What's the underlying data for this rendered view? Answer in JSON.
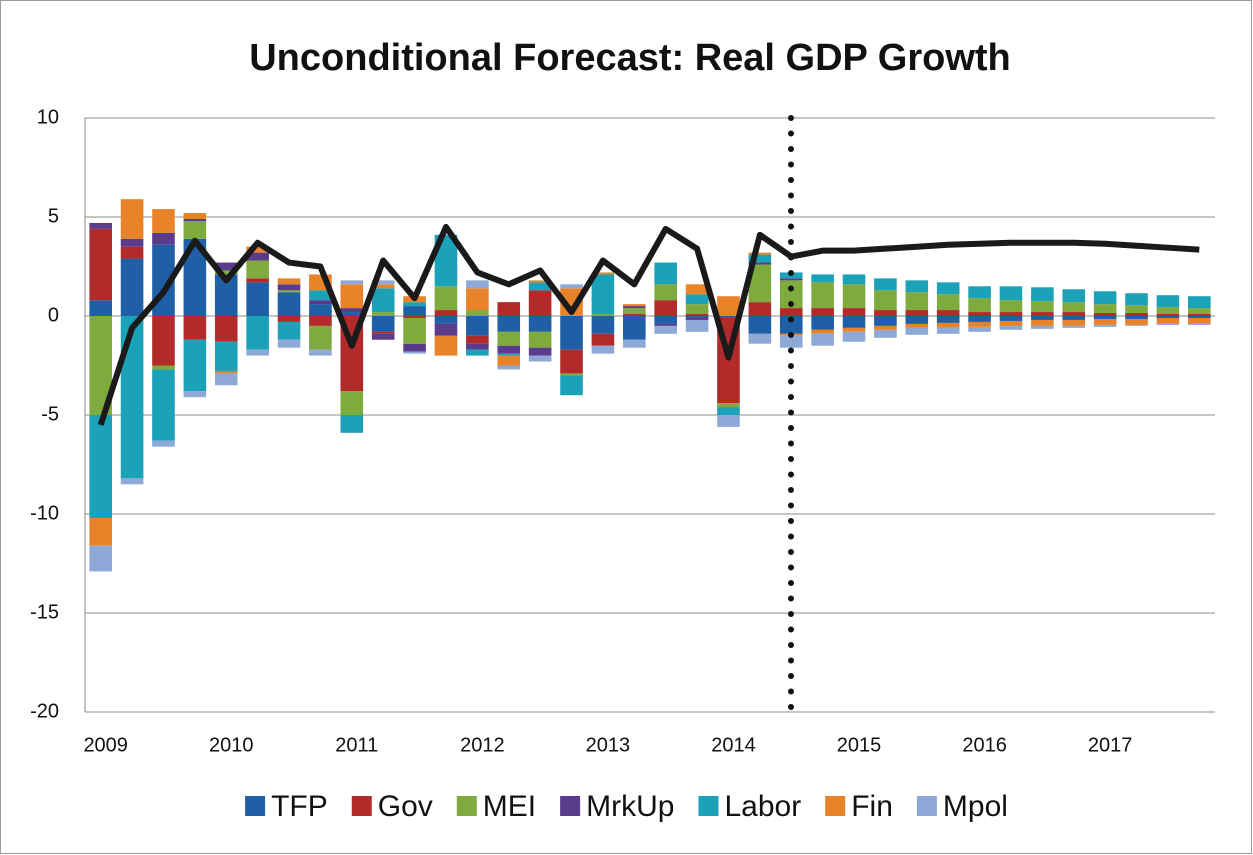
{
  "chart_data": {
    "type": "bar",
    "title": "Unconditional Forecast: Real GDP Growth",
    "categories": [
      "2009",
      null,
      null,
      null,
      "2010",
      null,
      null,
      null,
      "2011",
      null,
      null,
      null,
      "2012",
      null,
      null,
      null,
      "2013",
      null,
      null,
      null,
      "2014",
      null,
      null,
      null,
      "2015",
      null,
      null,
      null,
      "2016",
      null,
      null,
      null,
      "2017",
      null,
      null,
      null
    ],
    "series": [
      {
        "name": "TFP",
        "color": "#1f5fa6",
        "values": [
          0.8,
          2.9,
          3.6,
          3.9,
          2.1,
          1.7,
          1.2,
          0.6,
          0.2,
          -0.8,
          0.5,
          -0.4,
          -1.0,
          -0.8,
          -0.8,
          -1.7,
          -0.9,
          -1.2,
          -0.4,
          -0.1,
          -0.1,
          -0.9,
          -0.9,
          -0.7,
          -0.6,
          -0.5,
          -0.4,
          -0.35,
          -0.3,
          -0.25,
          -0.2,
          -0.2,
          -0.15,
          -0.15,
          -0.1,
          -0.1
        ]
      },
      {
        "name": "Gov",
        "color": "#b22a2a",
        "values": [
          3.6,
          0.6,
          -2.5,
          -1.2,
          -1.3,
          0.2,
          -0.3,
          -0.5,
          -3.8,
          -0.1,
          -0.1,
          0.3,
          -0.4,
          0.7,
          1.3,
          -1.2,
          -0.6,
          0.1,
          0.8,
          0.1,
          -4.3,
          0.7,
          0.4,
          0.4,
          0.4,
          0.3,
          0.3,
          0.3,
          0.2,
          0.2,
          0.2,
          0.2,
          0.15,
          0.15,
          0.1,
          0.1
        ]
      },
      {
        "name": "MEI",
        "color": "#7fab3e",
        "values": [
          -5.0,
          0,
          -0.2,
          0.9,
          0.2,
          0.9,
          0.1,
          -1.2,
          -1.2,
          0.2,
          -1.3,
          1.2,
          0.3,
          -0.7,
          -0.8,
          -0.1,
          0.1,
          0.3,
          0.8,
          0.5,
          -0.2,
          1.9,
          1.4,
          1.3,
          1.2,
          1.0,
          0.9,
          0.8,
          0.7,
          0.6,
          0.55,
          0.5,
          0.45,
          0.4,
          0.35,
          0.3
        ]
      },
      {
        "name": "MrkUp",
        "color": "#5b3b8c",
        "values": [
          0.3,
          0.4,
          0.6,
          0.1,
          0.4,
          0.4,
          0.3,
          0.2,
          0.2,
          -0.3,
          -0.4,
          -0.6,
          -0.3,
          -0.4,
          -0.4,
          0,
          0,
          0.1,
          -0.1,
          -0.1,
          0,
          0.1,
          0.1,
          0,
          0,
          0,
          0,
          0,
          0,
          0,
          0,
          0,
          0,
          0,
          0,
          0
        ]
      },
      {
        "name": "Labor",
        "color": "#1ba1b8",
        "values": [
          -5.2,
          -8.2,
          -3.6,
          -2.6,
          -1.5,
          -1.7,
          -0.9,
          0.5,
          -0.9,
          1.2,
          0.2,
          2.6,
          -0.3,
          -0.1,
          0.4,
          -1.0,
          2.0,
          0,
          1.1,
          0.5,
          -0.4,
          0.4,
          0.3,
          0.4,
          0.5,
          0.6,
          0.6,
          0.6,
          0.6,
          0.7,
          0.7,
          0.65,
          0.65,
          0.6,
          0.6,
          0.6
        ]
      },
      {
        "name": "Fin",
        "color": "#e8832a",
        "values": [
          -1.4,
          2.0,
          1.2,
          0.3,
          -0.1,
          0.3,
          0.3,
          0.8,
          1.2,
          0.2,
          0.3,
          -1.0,
          1.1,
          -0.5,
          0.1,
          1.4,
          0.1,
          0.1,
          0,
          0.5,
          1.0,
          0.1,
          -0.1,
          -0.2,
          -0.2,
          -0.2,
          -0.2,
          -0.25,
          -0.25,
          -0.25,
          -0.3,
          -0.3,
          -0.3,
          -0.3,
          -0.3,
          -0.3
        ]
      },
      {
        "name": "Mpol",
        "color": "#8ea9d8",
        "values": [
          -1.3,
          -0.3,
          -0.3,
          -0.3,
          -0.6,
          -0.3,
          -0.4,
          -0.3,
          0.2,
          0.2,
          -0.1,
          0,
          0.4,
          -0.2,
          -0.3,
          0.2,
          -0.4,
          -0.4,
          -0.4,
          -0.6,
          -0.6,
          -0.5,
          -0.6,
          -0.6,
          -0.5,
          -0.4,
          -0.35,
          -0.3,
          -0.25,
          -0.2,
          -0.15,
          -0.1,
          -0.1,
          -0.05,
          -0.05,
          -0.05
        ]
      }
    ],
    "line": {
      "color": "#1a1a1a",
      "values": [
        -5.5,
        -0.6,
        1.2,
        3.8,
        1.8,
        3.7,
        2.7,
        2.5,
        -1.5,
        2.8,
        0.9,
        4.5,
        2.2,
        1.6,
        2.3,
        0.2,
        2.8,
        1.6,
        4.4,
        3.4,
        -2.1,
        4.1,
        3.0,
        3.3,
        3.3,
        3.4,
        3.5,
        3.6,
        3.65,
        3.7,
        3.7,
        3.7,
        3.65,
        3.55,
        3.45,
        3.35
      ]
    },
    "ylim": [
      -20,
      10
    ],
    "yticks": [
      -20,
      -15,
      -10,
      -5,
      0,
      5,
      10
    ],
    "grid": true,
    "legend": "bottom"
  }
}
